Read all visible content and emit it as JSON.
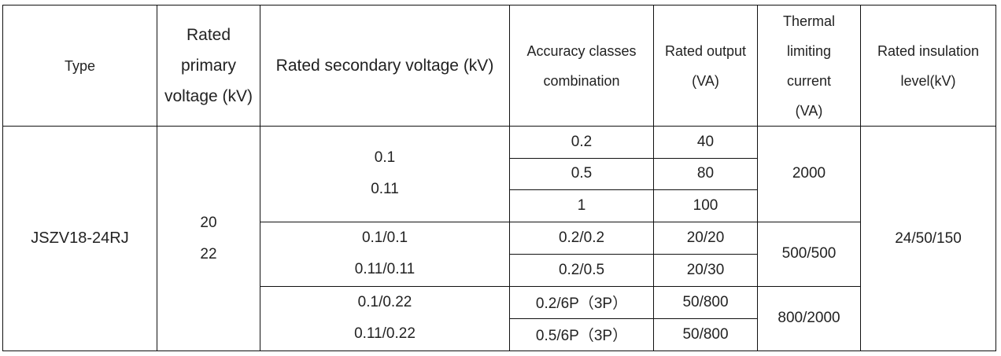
{
  "headers": {
    "type": "Type",
    "rated_primary_voltage": [
      "Rated",
      "primary",
      "voltage (kV)"
    ],
    "rated_secondary_voltage": "Rated secondary voltage (kV)",
    "accuracy_classes": [
      "Accuracy classes",
      "combination"
    ],
    "rated_output": [
      "Rated output",
      "(VA)"
    ],
    "thermal_limiting_current": [
      "Thermal",
      "limiting",
      "current",
      "(VA)"
    ],
    "rated_insulation_level": [
      "Rated insulation",
      "level(kV)"
    ]
  },
  "row": {
    "type": "JSZV18-24RJ",
    "primary_voltage": [
      "20",
      "22"
    ],
    "insulation_level": "24/50/150"
  },
  "groups": [
    {
      "secondary_voltage": [
        "0.1",
        "0.11"
      ],
      "thermal_limiting_current": "2000",
      "rows": [
        {
          "accuracy": "0.2",
          "output": "40"
        },
        {
          "accuracy": "0.5",
          "output": "80"
        },
        {
          "accuracy": "1",
          "output": "100"
        }
      ]
    },
    {
      "secondary_voltage": [
        "0.1/0.1",
        "0.11/0.11"
      ],
      "thermal_limiting_current": "500/500",
      "rows": [
        {
          "accuracy": "0.2/0.2",
          "output": "20/20"
        },
        {
          "accuracy": "0.2/0.5",
          "output": "20/30"
        }
      ]
    },
    {
      "secondary_voltage": [
        "0.1/0.22",
        "0.11/0.22"
      ],
      "thermal_limiting_current": "800/2000",
      "rows": [
        {
          "accuracy": "0.2/6P（3P）",
          "output": "50/800"
        },
        {
          "accuracy": "0.5/6P（3P）",
          "output": "50/800"
        }
      ]
    }
  ]
}
